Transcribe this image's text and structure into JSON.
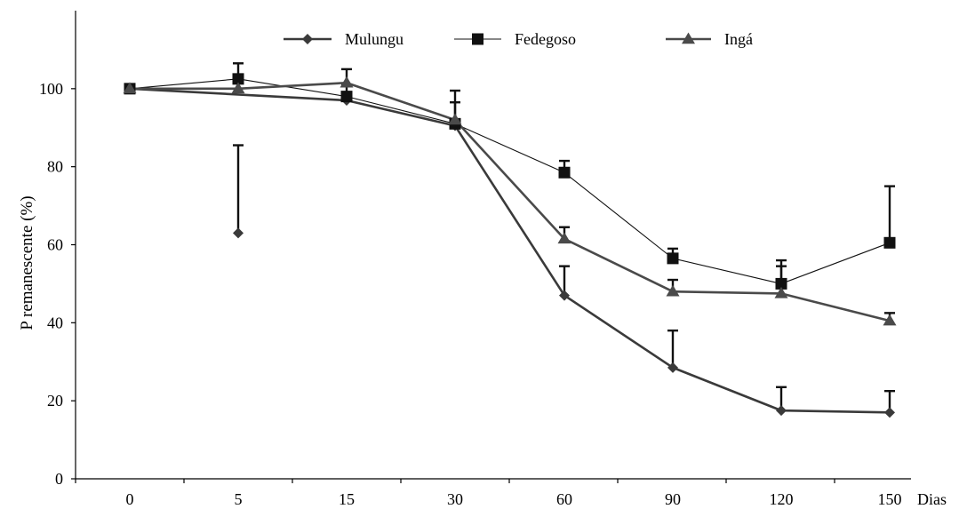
{
  "chart_data": {
    "type": "line",
    "categories": [
      "0",
      "5",
      "15",
      "30",
      "60",
      "90",
      "120",
      "150"
    ],
    "x_unit_label": "Dias",
    "ylabel": "P remanescente (%)",
    "ylim": [
      0,
      120
    ],
    "yticks": [
      0,
      20,
      40,
      60,
      80,
      100
    ],
    "grid": false,
    "legend_position": "top",
    "series": [
      {
        "name": "Mulungu",
        "marker": "diamond",
        "color": "#3a3a3a",
        "values": [
          100,
          63,
          97,
          90.5,
          47,
          28.5,
          17.5,
          17
        ],
        "error_plus": [
          0,
          22.5,
          0,
          0,
          7.5,
          9.5,
          6,
          5.5
        ]
      },
      {
        "name": "Fedegoso",
        "marker": "square",
        "color": "#111111",
        "values": [
          100,
          102.5,
          98,
          91,
          78.5,
          56.5,
          50,
          60.5
        ],
        "error_plus": [
          0,
          4,
          3,
          5.5,
          3,
          2.5,
          6,
          14.5
        ]
      },
      {
        "name": "Ingá",
        "marker": "triangle",
        "color": "#4a4a4a",
        "values": [
          100,
          100,
          101.5,
          92,
          61.5,
          48,
          47.5,
          40.5
        ],
        "error_plus": [
          0,
          0,
          3.5,
          7.5,
          3,
          3,
          7,
          2
        ]
      }
    ]
  }
}
